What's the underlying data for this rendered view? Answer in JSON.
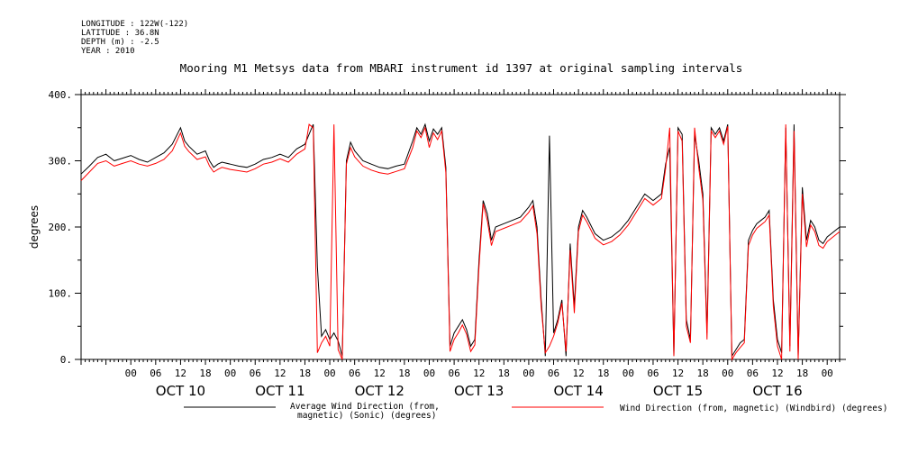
{
  "header": {
    "longitude": "LONGITUDE : 122W(-122)",
    "latitude": "LATITUDE : 36.8N",
    "depth": "DEPTH (m) : -2.5",
    "year": "YEAR : 2010"
  },
  "chart_data": {
    "type": "line",
    "title": "Mooring M1 Metsys data from MBARI instrument id 1397 at original sampling intervals",
    "ylabel": "degrees",
    "xlabel": "",
    "ylim": [
      0,
      400
    ],
    "y_ticks": [
      0,
      100,
      200,
      300,
      400
    ],
    "y_tick_labels": [
      "0.",
      "100.",
      "200.",
      "300.",
      "400."
    ],
    "x_range_hours": [
      -12,
      171
    ],
    "hour_tick_labels": [
      "00",
      "06",
      "12",
      "18"
    ],
    "days": [
      "OCT 10",
      "OCT 11",
      "OCT 12",
      "OCT 13",
      "OCT 14",
      "OCT 15",
      "OCT 16"
    ],
    "grid": false,
    "legend_position": "bottom",
    "series": [
      {
        "name": "Average Wind Direction (from, magnetic) (Sonic) (degrees)",
        "color": "#000000",
        "points": [
          [
            -12,
            280
          ],
          [
            -10,
            292
          ],
          [
            -8,
            305
          ],
          [
            -6,
            310
          ],
          [
            -4,
            300
          ],
          [
            -2,
            304
          ],
          [
            0,
            308
          ],
          [
            2,
            302
          ],
          [
            4,
            298
          ],
          [
            6,
            305
          ],
          [
            8,
            312
          ],
          [
            10,
            325
          ],
          [
            12,
            350
          ],
          [
            13,
            330
          ],
          [
            14,
            322
          ],
          [
            16,
            310
          ],
          [
            18,
            315
          ],
          [
            19,
            300
          ],
          [
            20,
            290
          ],
          [
            21,
            295
          ],
          [
            22,
            298
          ],
          [
            24,
            295
          ],
          [
            26,
            292
          ],
          [
            28,
            290
          ],
          [
            30,
            295
          ],
          [
            32,
            302
          ],
          [
            34,
            305
          ],
          [
            36,
            310
          ],
          [
            38,
            305
          ],
          [
            40,
            318
          ],
          [
            42,
            325
          ],
          [
            43,
            340
          ],
          [
            44,
            355
          ],
          [
            45,
            140
          ],
          [
            46,
            35
          ],
          [
            47,
            45
          ],
          [
            48,
            30
          ],
          [
            49,
            40
          ],
          [
            50,
            28
          ],
          [
            51,
            5
          ],
          [
            52,
            300
          ],
          [
            53,
            328
          ],
          [
            54,
            315
          ],
          [
            56,
            300
          ],
          [
            58,
            295
          ],
          [
            60,
            290
          ],
          [
            62,
            288
          ],
          [
            64,
            292
          ],
          [
            66,
            295
          ],
          [
            68,
            330
          ],
          [
            69,
            350
          ],
          [
            70,
            340
          ],
          [
            71,
            355
          ],
          [
            72,
            330
          ],
          [
            73,
            348
          ],
          [
            74,
            340
          ],
          [
            75,
            350
          ],
          [
            76,
            290
          ],
          [
            77,
            20
          ],
          [
            78,
            40
          ],
          [
            79,
            50
          ],
          [
            80,
            60
          ],
          [
            81,
            45
          ],
          [
            82,
            20
          ],
          [
            83,
            30
          ],
          [
            84,
            150
          ],
          [
            85,
            240
          ],
          [
            86,
            220
          ],
          [
            87,
            180
          ],
          [
            88,
            200
          ],
          [
            90,
            205
          ],
          [
            92,
            210
          ],
          [
            94,
            215
          ],
          [
            96,
            230
          ],
          [
            97,
            240
          ],
          [
            98,
            200
          ],
          [
            99,
            90
          ],
          [
            100,
            5
          ],
          [
            101,
            338
          ],
          [
            102,
            40
          ],
          [
            103,
            60
          ],
          [
            104,
            90
          ],
          [
            105,
            5
          ],
          [
            106,
            175
          ],
          [
            107,
            80
          ],
          [
            108,
            200
          ],
          [
            109,
            225
          ],
          [
            110,
            215
          ],
          [
            112,
            190
          ],
          [
            114,
            180
          ],
          [
            116,
            185
          ],
          [
            118,
            195
          ],
          [
            120,
            210
          ],
          [
            122,
            230
          ],
          [
            124,
            250
          ],
          [
            126,
            240
          ],
          [
            128,
            250
          ],
          [
            129,
            295
          ],
          [
            130,
            320
          ],
          [
            131,
            5
          ],
          [
            132,
            350
          ],
          [
            133,
            340
          ],
          [
            134,
            60
          ],
          [
            135,
            30
          ],
          [
            136,
            340
          ],
          [
            137,
            300
          ],
          [
            138,
            250
          ],
          [
            139,
            40
          ],
          [
            140,
            350
          ],
          [
            141,
            340
          ],
          [
            142,
            350
          ],
          [
            143,
            330
          ],
          [
            144,
            355
          ],
          [
            145,
            5
          ],
          [
            146,
            15
          ],
          [
            147,
            25
          ],
          [
            148,
            30
          ],
          [
            149,
            180
          ],
          [
            150,
            195
          ],
          [
            151,
            205
          ],
          [
            152,
            210
          ],
          [
            153,
            215
          ],
          [
            154,
            225
          ],
          [
            155,
            90
          ],
          [
            156,
            30
          ],
          [
            157,
            10
          ],
          [
            158,
            350
          ],
          [
            159,
            20
          ],
          [
            160,
            355
          ],
          [
            161,
            5
          ],
          [
            162,
            260
          ],
          [
            163,
            180
          ],
          [
            164,
            210
          ],
          [
            165,
            200
          ],
          [
            166,
            180
          ],
          [
            167,
            175
          ],
          [
            168,
            185
          ],
          [
            169,
            190
          ],
          [
            171,
            200
          ]
        ]
      },
      {
        "name": "Wind Direction (from, magnetic) (Windbird) (degrees)",
        "color": "#ff0000",
        "points": [
          [
            -12,
            270
          ],
          [
            -10,
            283
          ],
          [
            -8,
            296
          ],
          [
            -6,
            300
          ],
          [
            -4,
            292
          ],
          [
            -2,
            296
          ],
          [
            0,
            300
          ],
          [
            2,
            295
          ],
          [
            4,
            292
          ],
          [
            6,
            296
          ],
          [
            8,
            302
          ],
          [
            10,
            315
          ],
          [
            12,
            342
          ],
          [
            13,
            322
          ],
          [
            14,
            314
          ],
          [
            16,
            302
          ],
          [
            18,
            306
          ],
          [
            19,
            292
          ],
          [
            20,
            283
          ],
          [
            21,
            287
          ],
          [
            22,
            290
          ],
          [
            24,
            287
          ],
          [
            26,
            285
          ],
          [
            28,
            283
          ],
          [
            30,
            288
          ],
          [
            32,
            295
          ],
          [
            34,
            298
          ],
          [
            36,
            303
          ],
          [
            38,
            298
          ],
          [
            40,
            310
          ],
          [
            42,
            318
          ],
          [
            43,
            355
          ],
          [
            44,
            350
          ],
          [
            45,
            10
          ],
          [
            46,
            25
          ],
          [
            47,
            35
          ],
          [
            48,
            20
          ],
          [
            49,
            355
          ],
          [
            50,
            15
          ],
          [
            51,
            0
          ],
          [
            52,
            295
          ],
          [
            53,
            320
          ],
          [
            54,
            306
          ],
          [
            56,
            292
          ],
          [
            58,
            286
          ],
          [
            60,
            282
          ],
          [
            62,
            280
          ],
          [
            64,
            284
          ],
          [
            66,
            288
          ],
          [
            68,
            320
          ],
          [
            69,
            345
          ],
          [
            70,
            335
          ],
          [
            71,
            350
          ],
          [
            72,
            320
          ],
          [
            73,
            342
          ],
          [
            74,
            332
          ],
          [
            75,
            345
          ],
          [
            76,
            282
          ],
          [
            77,
            12
          ],
          [
            78,
            30
          ],
          [
            79,
            40
          ],
          [
            80,
            52
          ],
          [
            81,
            38
          ],
          [
            82,
            12
          ],
          [
            83,
            22
          ],
          [
            84,
            140
          ],
          [
            85,
            235
          ],
          [
            86,
            210
          ],
          [
            87,
            172
          ],
          [
            88,
            193
          ],
          [
            90,
            198
          ],
          [
            92,
            203
          ],
          [
            94,
            208
          ],
          [
            96,
            222
          ],
          [
            97,
            232
          ],
          [
            98,
            190
          ],
          [
            99,
            80
          ],
          [
            100,
            10
          ],
          [
            101,
            20
          ],
          [
            102,
            35
          ],
          [
            103,
            55
          ],
          [
            104,
            85
          ],
          [
            105,
            12
          ],
          [
            106,
            165
          ],
          [
            107,
            70
          ],
          [
            108,
            193
          ],
          [
            109,
            218
          ],
          [
            110,
            208
          ],
          [
            112,
            183
          ],
          [
            114,
            173
          ],
          [
            116,
            178
          ],
          [
            118,
            188
          ],
          [
            120,
            203
          ],
          [
            122,
            223
          ],
          [
            124,
            243
          ],
          [
            126,
            233
          ],
          [
            128,
            243
          ],
          [
            129,
            288
          ],
          [
            130,
            350
          ],
          [
            131,
            5
          ],
          [
            132,
            345
          ],
          [
            133,
            330
          ],
          [
            134,
            50
          ],
          [
            135,
            25
          ],
          [
            136,
            350
          ],
          [
            137,
            290
          ],
          [
            138,
            240
          ],
          [
            139,
            30
          ],
          [
            140,
            345
          ],
          [
            141,
            335
          ],
          [
            142,
            345
          ],
          [
            143,
            325
          ],
          [
            144,
            352
          ],
          [
            145,
            0
          ],
          [
            146,
            10
          ],
          [
            147,
            18
          ],
          [
            148,
            25
          ],
          [
            149,
            172
          ],
          [
            150,
            188
          ],
          [
            151,
            198
          ],
          [
            152,
            203
          ],
          [
            153,
            208
          ],
          [
            154,
            218
          ],
          [
            155,
            80
          ],
          [
            156,
            20
          ],
          [
            157,
            0
          ],
          [
            158,
            355
          ],
          [
            159,
            12
          ],
          [
            160,
            345
          ],
          [
            161,
            0
          ],
          [
            162,
            250
          ],
          [
            163,
            170
          ],
          [
            164,
            203
          ],
          [
            165,
            193
          ],
          [
            166,
            172
          ],
          [
            167,
            168
          ],
          [
            168,
            178
          ],
          [
            169,
            183
          ],
          [
            171,
            193
          ]
        ]
      }
    ]
  }
}
